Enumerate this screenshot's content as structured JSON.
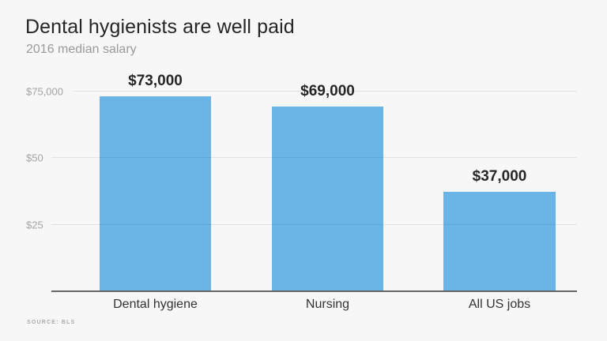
{
  "header": {
    "title": "Dental hygienists are well paid",
    "subtitle": "2016 median salary"
  },
  "footer": {
    "source": "SOURCE: BLS"
  },
  "colors": {
    "bar": "#6ab5e6",
    "background": "#f7f7f7",
    "title": "#262626",
    "subtitle": "#9a9a9a"
  },
  "axis": {
    "yticks": [
      {
        "label": "$75,000",
        "value": 75000
      },
      {
        "label": "$50",
        "value": 50000
      },
      {
        "label": "$25",
        "value": 25000
      }
    ]
  },
  "bars": [
    {
      "category": "Dental hygiene",
      "value": 73000,
      "label": "$73,000"
    },
    {
      "category": "Nursing",
      "value": 69000,
      "label": "$69,000"
    },
    {
      "category": "All US jobs",
      "value": 37000,
      "label": "$37,000"
    }
  ],
  "chart_data": {
    "type": "bar",
    "title": "Dental hygienists are well paid",
    "subtitle": "2016 median salary",
    "categories": [
      "Dental hygiene",
      "Nursing",
      "All US jobs"
    ],
    "values": [
      73000,
      69000,
      37000
    ],
    "data_labels": [
      "$73,000",
      "$69,000",
      "$37,000"
    ],
    "xlabel": "",
    "ylabel": "",
    "ylim": [
      0,
      75000
    ],
    "ytick_labels": [
      "$25",
      "$50",
      "$75,000"
    ],
    "ytick_values": [
      25000,
      50000,
      75000
    ],
    "grid": true,
    "legend": null,
    "source": "SOURCE: BLS"
  }
}
